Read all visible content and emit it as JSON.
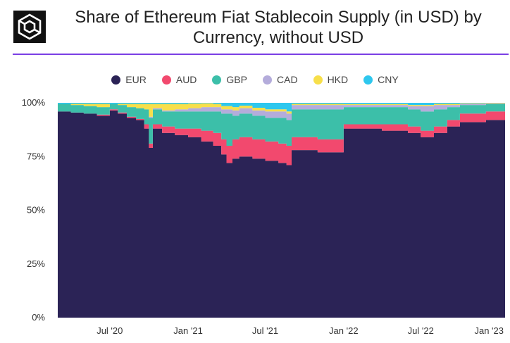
{
  "header": {
    "title_line1": "Share of Ethereum Fiat Stablecoin Supply (in USD) by",
    "title_line2": "Currency, without USD",
    "accent_color": "#7b3fe4",
    "logo_icon": "cube-logo-icon"
  },
  "chart_data": {
    "type": "area",
    "stacked": true,
    "normalized": true,
    "title": "Share of Ethereum Fiat Stablecoin Supply (in USD) by Currency, without USD",
    "xlabel": "",
    "ylabel": "",
    "ylim": [
      0,
      100
    ],
    "y_ticks": [
      "0%",
      "25%",
      "50%",
      "75%",
      "100%"
    ],
    "y_tick_values": [
      0,
      25,
      50,
      75,
      100
    ],
    "x_ticks": [
      "Jul '20",
      "Jan '21",
      "Jul '21",
      "Jan '22",
      "Jul '22",
      "Jan '23"
    ],
    "x_tick_dates": [
      "2020-07-01",
      "2021-01-01",
      "2021-07-01",
      "2022-01-01",
      "2022-07-01",
      "2023-01-01"
    ],
    "x_range": [
      "2020-03-01",
      "2023-01-15"
    ],
    "legend_position": "top-center",
    "grid": false,
    "x": [
      "2020-03-01",
      "2020-04-01",
      "2020-05-01",
      "2020-06-01",
      "2020-07-01",
      "2020-07-20",
      "2020-08-10",
      "2020-09-01",
      "2020-09-20",
      "2020-10-01",
      "2020-10-10",
      "2020-11-01",
      "2020-12-01",
      "2021-01-01",
      "2021-02-01",
      "2021-03-01",
      "2021-03-20",
      "2021-04-01",
      "2021-04-15",
      "2021-05-01",
      "2021-06-01",
      "2021-07-01",
      "2021-08-01",
      "2021-08-20",
      "2021-09-01",
      "2021-10-01",
      "2021-11-01",
      "2021-12-01",
      "2022-01-01",
      "2022-02-01",
      "2022-03-01",
      "2022-04-01",
      "2022-05-01",
      "2022-06-01",
      "2022-07-01",
      "2022-08-01",
      "2022-09-01",
      "2022-10-01",
      "2022-11-01",
      "2022-12-01",
      "2023-01-15"
    ],
    "series": [
      {
        "name": "EUR",
        "color": "#2b2356",
        "values": [
          96,
          95.5,
          95,
          94,
          96.5,
          95,
          93,
          92,
          88,
          79,
          88,
          86,
          85,
          84,
          82,
          80,
          76,
          72,
          74,
          75,
          74,
          73,
          72,
          71,
          78,
          78,
          77,
          77,
          88,
          88,
          88,
          87,
          87,
          86,
          84,
          86,
          89,
          91,
          91,
          92,
          92.5
        ]
      },
      {
        "name": "AUD",
        "color": "#f2496e",
        "values": [
          0,
          0,
          0,
          0.5,
          0.5,
          0.5,
          0.5,
          0.5,
          2,
          2,
          2,
          3,
          3,
          4,
          5,
          6,
          7,
          8,
          9,
          9,
          9,
          9,
          9,
          9,
          6,
          6,
          6,
          6,
          2,
          2,
          2,
          3,
          3,
          3,
          3,
          3,
          3,
          4,
          4,
          4,
          4.5
        ]
      },
      {
        "name": "GBP",
        "color": "#3cbfa9",
        "values": [
          3.5,
          3.5,
          3.5,
          3.5,
          2.5,
          3.5,
          4.5,
          5,
          7,
          12,
          7,
          7,
          8,
          8,
          9,
          10,
          12,
          15,
          11,
          11,
          11,
          11,
          12,
          12,
          13,
          13,
          14,
          14,
          8,
          8,
          8,
          8,
          8,
          8,
          9,
          8,
          6,
          4,
          4,
          3.5,
          2.5
        ]
      },
      {
        "name": "CAD",
        "color": "#b4acdb",
        "values": [
          0,
          0,
          0,
          0,
          0,
          0,
          0,
          0,
          0,
          0.5,
          0.5,
          0.5,
          1,
          1.5,
          2,
          2,
          2,
          2,
          2.5,
          2.5,
          2.5,
          3,
          3,
          3,
          2,
          2,
          2,
          2,
          1,
          1,
          1,
          1,
          1,
          1.5,
          2.5,
          2,
          1,
          0.5,
          0.5,
          0.3,
          0.3
        ]
      },
      {
        "name": "HKD",
        "color": "#f7df4a",
        "values": [
          0,
          0.5,
          1,
          1.5,
          0,
          0.5,
          1.5,
          2,
          2.5,
          6,
          2,
          3,
          2.5,
          2.2,
          1.8,
          1.5,
          1.5,
          1.5,
          1.5,
          1.2,
          1.2,
          1,
          1,
          1,
          0.5,
          0.5,
          0.5,
          0.5,
          0.4,
          0.4,
          0.4,
          0.4,
          0.4,
          0.5,
          0.5,
          0.5,
          0.5,
          0.3,
          0.3,
          0.2,
          0.2
        ]
      },
      {
        "name": "CNY",
        "color": "#2ec7ee",
        "values": [
          0.5,
          0.5,
          0.5,
          0.5,
          0.5,
          0.5,
          0.5,
          0.5,
          0.5,
          0.5,
          0.5,
          0.5,
          0.5,
          0.3,
          0.2,
          0.5,
          1.5,
          1.5,
          2,
          1.3,
          2.3,
          3,
          3,
          4,
          0.5,
          0.5,
          0.5,
          0.5,
          0.6,
          0.6,
          0.6,
          0.6,
          0.6,
          1,
          1,
          0.5,
          0.5,
          0.2,
          0.2,
          0,
          0
        ]
      }
    ]
  }
}
